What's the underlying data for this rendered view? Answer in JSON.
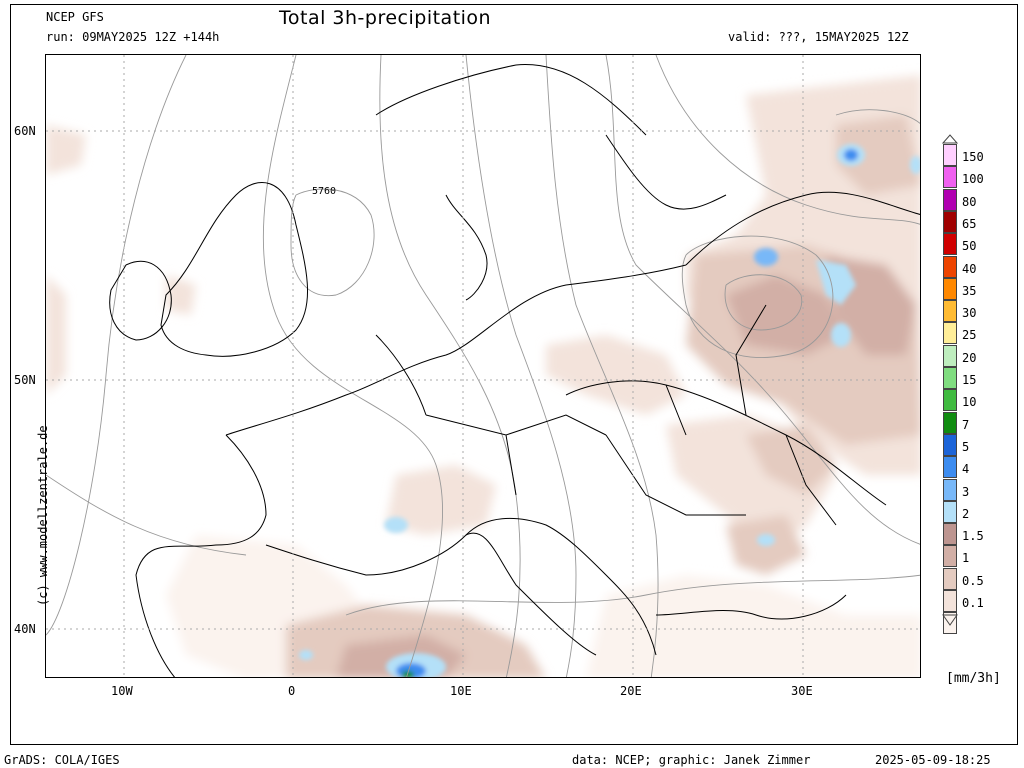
{
  "header": {
    "model": "NCEP GFS",
    "run": "run: 09MAY2025 12Z +144h",
    "title": "Total 3h-precipitation",
    "valid": "valid: ???, 15MAY2025 12Z"
  },
  "map": {
    "lat_labels": [
      "60N",
      "50N",
      "40N"
    ],
    "lon_labels": [
      "10W",
      "0",
      "10E",
      "20E",
      "30E"
    ],
    "contour_label": "5760",
    "watermark": "(c) www.modellzentrale.de"
  },
  "legend": {
    "unit": "[mm/3h]",
    "levels": [
      "150",
      "100",
      "80",
      "65",
      "50",
      "40",
      "35",
      "30",
      "25",
      "20",
      "15",
      "10",
      "7",
      "5",
      "4",
      "3",
      "2",
      "1.5",
      "1",
      "0.5",
      "0.1"
    ],
    "colors": [
      "#ffd0ff",
      "#f060f0",
      "#b000b0",
      "#a00000",
      "#d00000",
      "#ee4400",
      "#ff8800",
      "#ffbb33",
      "#ffee99",
      "#bfeebf",
      "#80dd80",
      "#40bb40",
      "#108c10",
      "#1c64d8",
      "#3c8cf0",
      "#78b8f8",
      "#b4e0f8",
      "#bd9590",
      "#d2afa6",
      "#e4cbc0",
      "#f3e3db",
      "#fbf3ee"
    ]
  },
  "footer": {
    "left": "GrADS: COLA/IGES",
    "center": "data: NCEP; graphic: Janek Zimmer",
    "right": "2025-05-09-18:25"
  }
}
